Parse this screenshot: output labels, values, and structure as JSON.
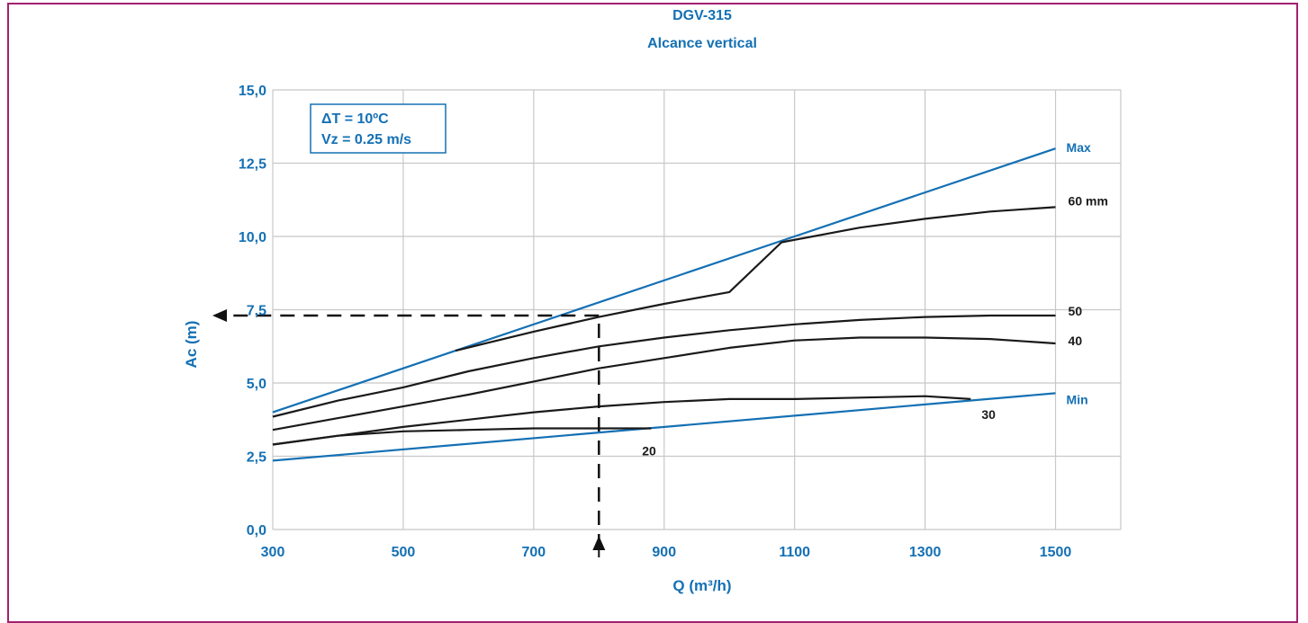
{
  "colors": {
    "frame": "#a3216f",
    "blue": "#1470b4",
    "black": "#1a1a1a",
    "grid": "#c8c8c8"
  },
  "chart_data": {
    "type": "line",
    "title": "DGV-315",
    "subtitle": "Alcance vertical",
    "xlabel": "Q (m³/h)",
    "ylabel": "Ac (m)",
    "xlim": [
      300,
      1600
    ],
    "ylim": [
      0,
      15
    ],
    "x_ticks": [
      300,
      500,
      700,
      900,
      1100,
      1300,
      1500
    ],
    "x_tick_labels": [
      "300",
      "500",
      "700",
      "900",
      "1100",
      "1300",
      "1500"
    ],
    "y_ticks": [
      0,
      2.5,
      5,
      7.5,
      10,
      12.5,
      15
    ],
    "y_tick_labels": [
      "0,0",
      "2,5",
      "5,0",
      "7,5",
      "10,0",
      "12,5",
      "15,0"
    ],
    "grid": true,
    "annotation_box": [
      "ΔT = 10ºC",
      "Vz = 0.25 m/s"
    ],
    "series": [
      {
        "name": "Max",
        "color": "#1470b4",
        "x": [
          300,
          1500
        ],
        "y": [
          4.0,
          13.0
        ]
      },
      {
        "name": "Min",
        "color": "#1470b4",
        "x": [
          300,
          1500
        ],
        "y": [
          2.35,
          4.65
        ]
      },
      {
        "name": "60 mm",
        "color": "#1a1a1a",
        "x": [
          580,
          700,
          800,
          900,
          1000,
          1080,
          1200,
          1300,
          1400,
          1500
        ],
        "y": [
          6.1,
          6.75,
          7.25,
          7.7,
          8.1,
          9.8,
          10.3,
          10.6,
          10.85,
          11.0
        ]
      },
      {
        "name": "50",
        "color": "#1a1a1a",
        "x": [
          300,
          400,
          500,
          600,
          700,
          800,
          900,
          1000,
          1100,
          1200,
          1300,
          1400,
          1500
        ],
        "y": [
          3.85,
          4.4,
          4.85,
          5.4,
          5.85,
          6.25,
          6.55,
          6.8,
          7.0,
          7.15,
          7.25,
          7.3,
          7.3
        ]
      },
      {
        "name": "40",
        "color": "#1a1a1a",
        "x": [
          300,
          400,
          500,
          600,
          700,
          800,
          900,
          1000,
          1100,
          1200,
          1300,
          1400,
          1500
        ],
        "y": [
          3.4,
          3.8,
          4.2,
          4.6,
          5.05,
          5.5,
          5.85,
          6.2,
          6.45,
          6.55,
          6.55,
          6.5,
          6.35
        ]
      },
      {
        "name": "30",
        "color": "#1a1a1a",
        "x": [
          300,
          400,
          500,
          600,
          700,
          800,
          900,
          1000,
          1100,
          1200,
          1300,
          1370
        ],
        "y": [
          2.9,
          3.2,
          3.5,
          3.75,
          4.0,
          4.2,
          4.35,
          4.45,
          4.45,
          4.5,
          4.55,
          4.45
        ]
      },
      {
        "name": "20",
        "color": "#1a1a1a",
        "x": [
          300,
          400,
          500,
          600,
          700,
          800,
          880
        ],
        "y": [
          2.9,
          3.2,
          3.35,
          3.4,
          3.45,
          3.45,
          3.45
        ]
      }
    ],
    "reading_example": {
      "x": 800,
      "y": 7.3
    }
  }
}
